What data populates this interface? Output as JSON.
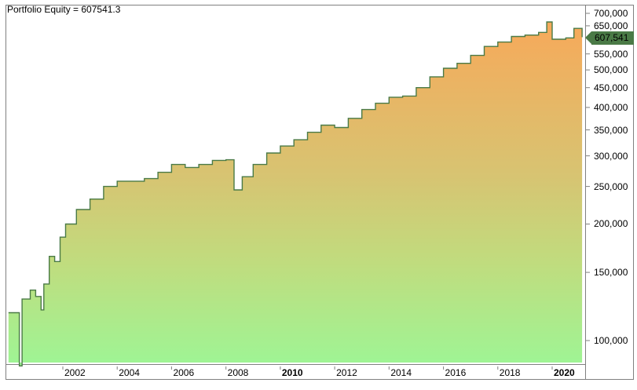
{
  "chart_data": {
    "type": "area",
    "title": "Portfolio Equity = 607541.3",
    "series": [
      {
        "name": "Portfolio Equity",
        "last_value": 607541.3,
        "last_value_label": "607,541",
        "color_line": "#4a7a46",
        "fill_gradient": {
          "top": "#f7a95a",
          "bottom": "#9ef595"
        },
        "points": [
          {
            "x": 2000.0,
            "y": 118000
          },
          {
            "x": 2000.4,
            "y": 86000
          },
          {
            "x": 2000.5,
            "y": 128000
          },
          {
            "x": 2000.8,
            "y": 135000
          },
          {
            "x": 2001.0,
            "y": 130000
          },
          {
            "x": 2001.2,
            "y": 120000
          },
          {
            "x": 2001.3,
            "y": 140000
          },
          {
            "x": 2001.5,
            "y": 165000
          },
          {
            "x": 2001.7,
            "y": 160000
          },
          {
            "x": 2001.9,
            "y": 185000
          },
          {
            "x": 2002.1,
            "y": 200000
          },
          {
            "x": 2002.5,
            "y": 218000
          },
          {
            "x": 2003.0,
            "y": 232000
          },
          {
            "x": 2003.5,
            "y": 250000
          },
          {
            "x": 2004.0,
            "y": 258000
          },
          {
            "x": 2005.0,
            "y": 262000
          },
          {
            "x": 2005.5,
            "y": 272000
          },
          {
            "x": 2006.0,
            "y": 285000
          },
          {
            "x": 2006.5,
            "y": 280000
          },
          {
            "x": 2007.0,
            "y": 285000
          },
          {
            "x": 2007.5,
            "y": 292000
          },
          {
            "x": 2008.0,
            "y": 293000
          },
          {
            "x": 2008.3,
            "y": 245000
          },
          {
            "x": 2008.6,
            "y": 265000
          },
          {
            "x": 2009.0,
            "y": 285000
          },
          {
            "x": 2009.5,
            "y": 305000
          },
          {
            "x": 2010.0,
            "y": 318000
          },
          {
            "x": 2010.5,
            "y": 330000
          },
          {
            "x": 2011.0,
            "y": 345000
          },
          {
            "x": 2011.5,
            "y": 360000
          },
          {
            "x": 2012.0,
            "y": 355000
          },
          {
            "x": 2012.5,
            "y": 375000
          },
          {
            "x": 2013.0,
            "y": 395000
          },
          {
            "x": 2013.5,
            "y": 410000
          },
          {
            "x": 2014.0,
            "y": 425000
          },
          {
            "x": 2014.5,
            "y": 428000
          },
          {
            "x": 2015.0,
            "y": 450000
          },
          {
            "x": 2015.5,
            "y": 480000
          },
          {
            "x": 2016.0,
            "y": 505000
          },
          {
            "x": 2016.5,
            "y": 520000
          },
          {
            "x": 2017.0,
            "y": 545000
          },
          {
            "x": 2017.5,
            "y": 575000
          },
          {
            "x": 2018.0,
            "y": 590000
          },
          {
            "x": 2018.5,
            "y": 610000
          },
          {
            "x": 2019.0,
            "y": 615000
          },
          {
            "x": 2019.5,
            "y": 625000
          },
          {
            "x": 2019.8,
            "y": 665000
          },
          {
            "x": 2020.0,
            "y": 600000
          },
          {
            "x": 2020.5,
            "y": 605000
          },
          {
            "x": 2020.8,
            "y": 640000
          },
          {
            "x": 2021.1,
            "y": 607541
          }
        ]
      }
    ],
    "xlabel": "",
    "ylabel": "",
    "x_tick_labels": [
      "2002",
      "2004",
      "2006",
      "2008",
      "2010",
      "2012",
      "2014",
      "2016",
      "2018",
      "2020"
    ],
    "x_tick_bold": [
      "2010",
      "2020"
    ],
    "y_tick_labels": [
      "700,000",
      "650,000",
      "550,000",
      "500,000",
      "450,000",
      "400,000",
      "350,000",
      "300,000",
      "250,000",
      "200,000",
      "150,000",
      "100,000"
    ],
    "y_scale": "log",
    "ylim": [
      88000,
      720000
    ],
    "xlim": [
      1999.9,
      2021.2
    ],
    "grid": false,
    "legend": "none"
  },
  "colors": {
    "line": "#4a7a46",
    "fill_top": "#f7a95a",
    "fill_mid": "#c8d67a",
    "fill_bottom": "#9ef595",
    "frame": "#808080",
    "price_tag": "#4a7a46"
  }
}
